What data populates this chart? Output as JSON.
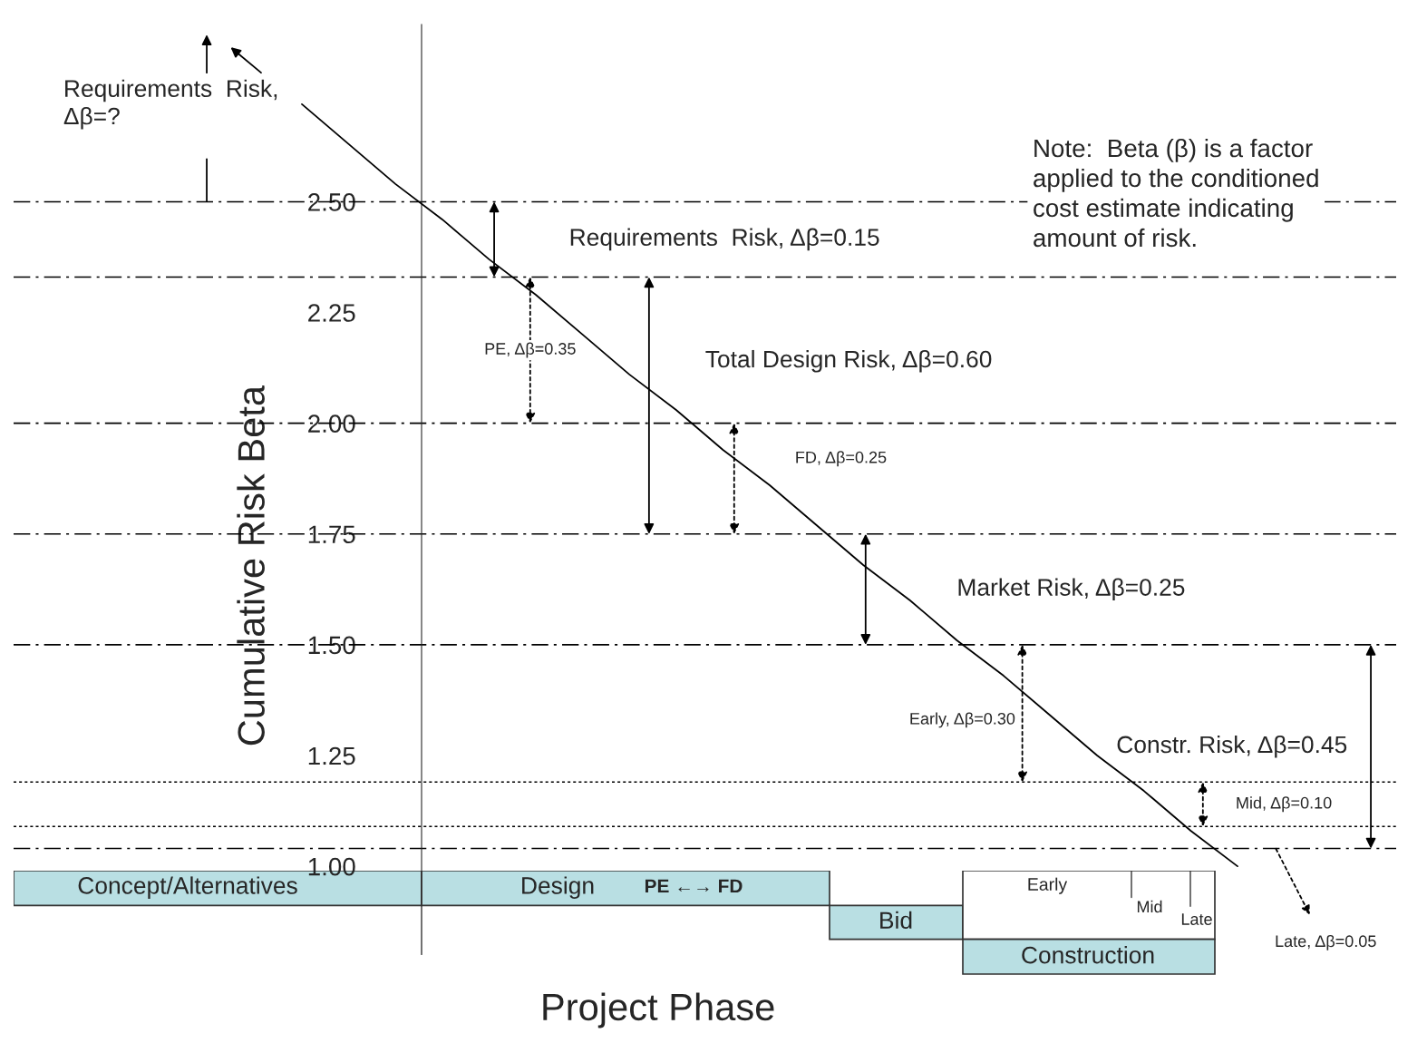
{
  "chart_data": [
    {
      "type": "line",
      "ylabel": "Cumulative Risk Beta",
      "ylim": [
        0.99,
        2.9
      ],
      "tick_labels": "y",
      "categories": [
        null,
        null,
        null,
        null,
        null,
        null,
        null,
        null,
        null,
        null,
        null,
        null,
        null,
        null,
        null,
        null,
        null,
        null,
        null,
        null,
        null
      ],
      "yticks": [
        {
          "value": 1.0,
          "label": "1.00"
        },
        {
          "value": 1.25,
          "label": "1.25"
        },
        {
          "value": 1.5,
          "label": "1.50"
        },
        {
          "value": 1.75,
          "label": "1.75"
        },
        {
          "value": 2.0,
          "label": "2.00"
        },
        {
          "value": 2.25,
          "label": "2.25"
        },
        {
          "value": 2.5,
          "label": "2.50"
        }
      ],
      "series": [
        {
          "type": "line",
          "color": "#000000",
          "line_style": "solid",
          "values": [
            2.72,
            2.63,
            2.54,
            2.46,
            2.37,
            2.29,
            2.2,
            2.11,
            2.03,
            1.94,
            1.86,
            1.77,
            1.68,
            1.6,
            1.51,
            1.43,
            1.34,
            1.25,
            1.17,
            1.08,
            1.0
          ]
        }
      ],
      "ref_lines": [
        {
          "axis": "y",
          "value": 2.5,
          "line_style": "dashed",
          "color": "#000000"
        },
        {
          "axis": "y",
          "value": 2.33,
          "line_style": "dashed",
          "color": "#000000"
        },
        {
          "axis": "y",
          "value": 2.0,
          "line_style": "dashed",
          "color": "#000000"
        },
        {
          "axis": "y",
          "value": 1.75,
          "line_style": "dashed",
          "color": "#000000"
        },
        {
          "axis": "y",
          "value": 1.5,
          "line_style": "dashed",
          "color": "#000000"
        },
        {
          "axis": "y",
          "value": 1.19,
          "line_style": "dotted",
          "color": "#000000"
        },
        {
          "axis": "y",
          "value": 1.09,
          "line_style": "dotted",
          "color": "#000000"
        },
        {
          "axis": "y",
          "value": 1.04,
          "line_style": "dashed",
          "color": "#000000"
        }
      ],
      "annotations": [
        "Requirements  Risk,\nΔβ=?",
        "Requirements  Risk, Δβ=0.15",
        "PE, Δβ=0.35",
        "Total Design Risk, Δβ=0.60",
        "FD, Δβ=0.25",
        "Market Risk, Δβ=0.25",
        "Early, Δβ=0.30",
        "Mid, Δβ=0.10",
        "Constr. Risk, Δβ=0.45",
        "Note:  Beta (β) is a factor\napplied to the conditioned\ncost estimate indicating\namount of risk.",
        "Late, Δβ=0.05"
      ]
    },
    {
      "type": "other",
      "xlabel": "Project Phase",
      "annotations": [
        "Concept/Alternatives",
        "Design",
        "PE ←→ FD",
        "Bid",
        "Construction",
        "Early",
        "Mid",
        "Late"
      ]
    }
  ]
}
